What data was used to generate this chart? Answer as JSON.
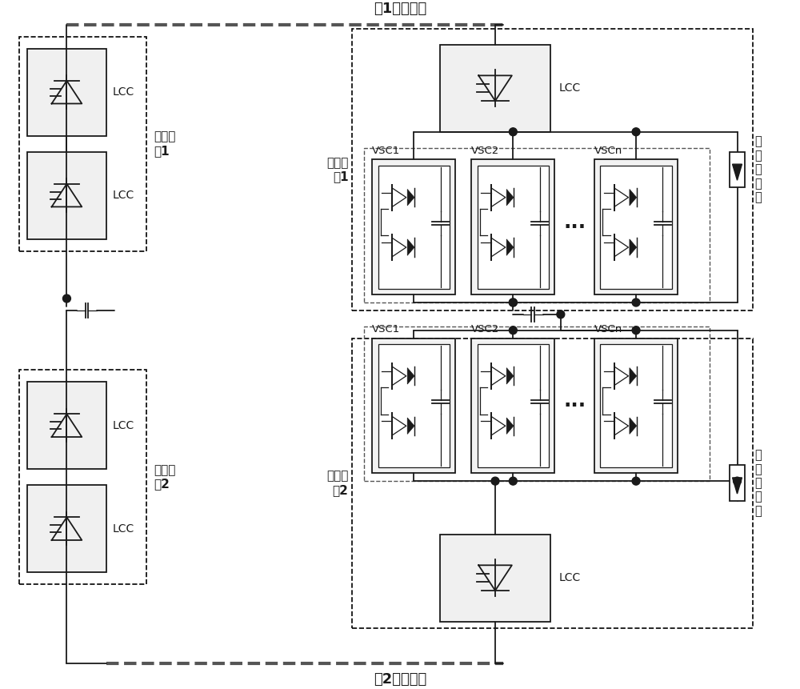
{
  "pole1_line_label": "极1直流线路",
  "pole2_line_label": "极2直流线路",
  "rect_station_pole1": "整流站\n极1",
  "rect_station_pole2": "整流站\n极2",
  "inv_station_pole1": "逆变站\n极1",
  "inv_station_pole2": "逆变站\n极2",
  "lcc_label": "LCC",
  "vsc1_label": "VSC1",
  "vsc2_label": "VSC2",
  "vscn_label": "VSCn",
  "arrester_label": "并\n联\n避\n雷\n器",
  "dots_label": "···",
  "bg_color": "#ffffff",
  "line_color": "#1a1a1a"
}
